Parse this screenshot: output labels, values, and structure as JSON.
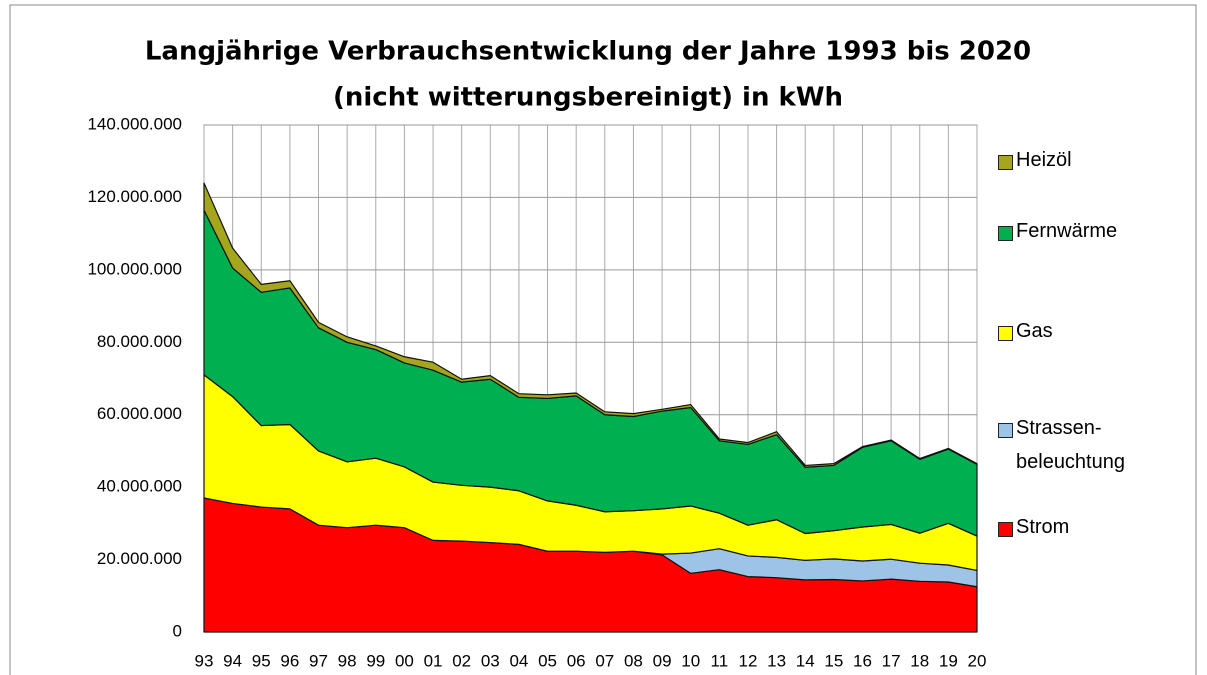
{
  "chart_data": {
    "type": "stacked_area",
    "title": [
      "Langjährige Verbrauchsentwicklung der Jahre 1993 bis 2020",
      "(nicht witterungsbereinigt) in kWh"
    ],
    "categories": [
      "93",
      "94",
      "95",
      "96",
      "97",
      "98",
      "99",
      "00",
      "01",
      "02",
      "03",
      "04",
      "05",
      "06",
      "07",
      "08",
      "09",
      "10",
      "11",
      "12",
      "13",
      "14",
      "15",
      "16",
      "17",
      "18",
      "19",
      "20"
    ],
    "series": [
      {
        "name": "Strom",
        "color": "#ff0000",
        "values": [
          37000000,
          35500000,
          34500000,
          34000000,
          29500000,
          28800000,
          29500000,
          28800000,
          25300000,
          25100000,
          24700000,
          24200000,
          22300000,
          22300000,
          22000000,
          22300000,
          21300000,
          16200000,
          17200000,
          15300000,
          15000000,
          14400000,
          14500000,
          14100000,
          14600000,
          14000000,
          13800000,
          12500000
        ]
      },
      {
        "name": "Strassen-\nbeleuchtung",
        "color": "#9dc3e6",
        "values": [
          0,
          0,
          0,
          0,
          0,
          0,
          0,
          0,
          0,
          0,
          0,
          0,
          0,
          0,
          0,
          0,
          200000,
          5600000,
          5800000,
          5700000,
          5600000,
          5400000,
          5700000,
          5500000,
          5500000,
          5000000,
          4700000,
          4500000
        ]
      },
      {
        "name": "Gas",
        "color": "#ffff00",
        "values": [
          34000000,
          29500000,
          22500000,
          23300000,
          20500000,
          18200000,
          18500000,
          16800000,
          16100000,
          15400000,
          15300000,
          14800000,
          13900000,
          12700000,
          11200000,
          11200000,
          12500000,
          13000000,
          9800000,
          8500000,
          10400000,
          7400000,
          7800000,
          9400000,
          9600000,
          8300000,
          11500000,
          9500000
        ]
      },
      {
        "name": "Fernwärme",
        "color": "#00b050",
        "values": [
          45500000,
          35500000,
          36800000,
          37700000,
          34000000,
          33000000,
          30000000,
          28700000,
          30900000,
          28500000,
          29800000,
          25800000,
          28300000,
          30200000,
          26800000,
          26000000,
          27000000,
          27200000,
          20000000,
          22300000,
          23500000,
          18300000,
          18000000,
          22000000,
          23100000,
          20400000,
          20500000,
          19800000
        ]
      },
      {
        "name": "Heizöl",
        "color": "#a6a61e",
        "values": [
          7500000,
          5500000,
          2200000,
          2000000,
          1500000,
          1500000,
          1000000,
          1700000,
          2200000,
          800000,
          1000000,
          1000000,
          1000000,
          800000,
          800000,
          800000,
          500000,
          800000,
          500000,
          500000,
          800000,
          500000,
          500000,
          200000,
          200000,
          200000,
          200000,
          200000
        ]
      }
    ],
    "ylim": [
      0,
      140000000
    ],
    "yticks": [
      0,
      {
        "value": 20000000,
        "label": "20.000.000"
      },
      {
        "value": 40000000,
        "label": "40.000.000"
      },
      {
        "value": 60000000,
        "label": "60.000.000"
      },
      {
        "value": 80000000,
        "label": "80.000.000"
      },
      {
        "value": 100000000,
        "label": "100.000.000"
      },
      {
        "value": 120000000,
        "label": "120.000.000"
      },
      {
        "value": 140000000,
        "label": "140.000.000"
      }
    ],
    "grid": true,
    "legend": "right"
  }
}
